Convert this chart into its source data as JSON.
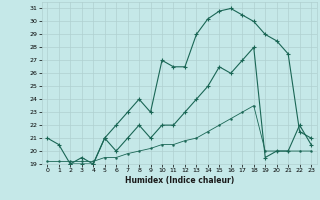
{
  "xlabel": "Humidex (Indice chaleur)",
  "bg_color": "#c5e8e8",
  "grid_color": "#b0d0d0",
  "line_color": "#1a6655",
  "xlim": [
    -0.5,
    23.5
  ],
  "ylim": [
    19,
    31.5
  ],
  "xticks": [
    0,
    1,
    2,
    3,
    4,
    5,
    6,
    7,
    8,
    9,
    10,
    11,
    12,
    13,
    14,
    15,
    16,
    17,
    18,
    19,
    20,
    21,
    22,
    23
  ],
  "yticks": [
    19,
    20,
    21,
    22,
    23,
    24,
    25,
    26,
    27,
    28,
    29,
    30,
    31
  ],
  "line1_x": [
    0,
    1,
    2,
    3,
    4,
    5,
    6,
    7,
    8,
    9,
    10,
    11,
    12,
    13,
    14,
    15,
    16,
    17,
    18,
    19,
    20,
    21,
    22,
    23
  ],
  "line1_y": [
    21,
    20.5,
    19,
    19,
    19,
    21,
    22,
    23,
    24,
    23,
    27,
    26.5,
    26.5,
    29,
    30.2,
    30.8,
    31.0,
    30.5,
    30.0,
    29.0,
    28.5,
    27.5,
    21.5,
    21.0
  ],
  "line2_x": [
    2,
    3,
    4,
    5,
    6,
    7,
    8,
    9,
    10,
    11,
    12,
    13,
    14,
    15,
    16,
    17,
    18,
    19,
    20,
    21,
    22,
    23
  ],
  "line2_y": [
    19,
    19.5,
    19,
    21,
    20,
    21,
    22,
    21,
    22,
    22,
    23,
    24,
    25,
    26.5,
    26,
    27.0,
    28.0,
    19.5,
    20,
    20,
    22,
    20.5
  ],
  "line3_x": [
    0,
    1,
    2,
    3,
    4,
    5,
    6,
    7,
    8,
    9,
    10,
    11,
    12,
    13,
    14,
    15,
    16,
    17,
    18,
    19,
    20,
    21,
    22,
    23
  ],
  "line3_y": [
    19.2,
    19.2,
    19.2,
    19.2,
    19.2,
    19.5,
    19.5,
    19.8,
    20.0,
    20.2,
    20.5,
    20.5,
    20.8,
    21.0,
    21.5,
    22.0,
    22.5,
    23.0,
    23.5,
    20.0,
    20.0,
    20.0,
    20.0,
    20.0
  ]
}
